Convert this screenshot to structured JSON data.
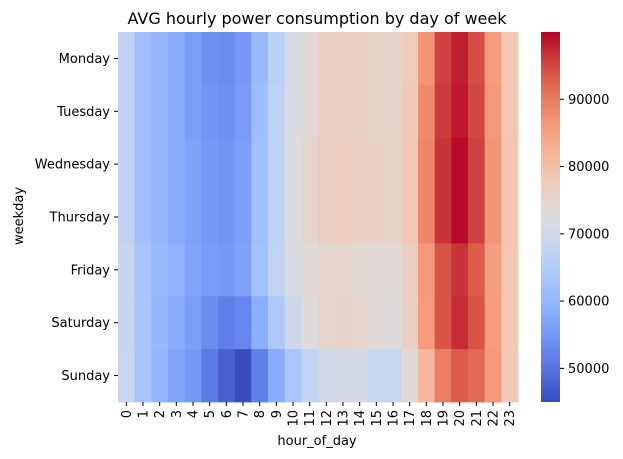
{
  "chart_data": {
    "type": "heatmap",
    "title": "AVG hourly power consumption by day of week",
    "xlabel": "hour_of_day",
    "ylabel": "weekday",
    "x": [
      "0",
      "1",
      "2",
      "3",
      "4",
      "5",
      "6",
      "7",
      "8",
      "9",
      "10",
      "11",
      "12",
      "13",
      "14",
      "15",
      "16",
      "17",
      "18",
      "19",
      "20",
      "21",
      "22",
      "23"
    ],
    "y": [
      "Monday",
      "Tuesday",
      "Wednesday",
      "Thursday",
      "Friday",
      "Saturday",
      "Sunday"
    ],
    "values": [
      [
        67000,
        62000,
        60000,
        58000,
        56000,
        54000,
        53500,
        55000,
        61000,
        66000,
        71000,
        74000,
        76000,
        76500,
        76000,
        75500,
        75000,
        77500,
        87000,
        95500,
        98000,
        94500,
        86000,
        78500
      ],
      [
        67000,
        62000,
        60000,
        58000,
        56000,
        54500,
        54000,
        55500,
        61500,
        66500,
        71500,
        74000,
        76000,
        76500,
        76000,
        75500,
        75000,
        78000,
        88000,
        96000,
        98500,
        95000,
        86500,
        78500
      ],
      [
        67000,
        62000,
        60000,
        58000,
        56500,
        55000,
        54500,
        56000,
        62000,
        67000,
        72000,
        74500,
        76500,
        77000,
        76500,
        76000,
        75500,
        78500,
        88500,
        96500,
        99500,
        95500,
        87000,
        79000
      ],
      [
        67000,
        62000,
        60000,
        58000,
        56500,
        55000,
        54500,
        56000,
        62000,
        67000,
        72000,
        74500,
        76500,
        77000,
        76500,
        76000,
        75500,
        78500,
        88500,
        96500,
        99500,
        95500,
        87000,
        79000
      ],
      [
        68000,
        63000,
        61000,
        59000,
        57000,
        55500,
        55000,
        56500,
        62500,
        67500,
        71500,
        73500,
        74500,
        74500,
        74000,
        73500,
        73500,
        76500,
        86500,
        94000,
        96500,
        93500,
        85500,
        78500
      ],
      [
        68000,
        63000,
        60500,
        58000,
        56000,
        53500,
        51500,
        52500,
        58500,
        64000,
        69500,
        73000,
        74500,
        75000,
        74500,
        73500,
        73000,
        76000,
        86000,
        94000,
        97000,
        94000,
        86000,
        78500
      ],
      [
        68500,
        63000,
        60000,
        57000,
        55000,
        51000,
        47500,
        45000,
        51500,
        58000,
        63500,
        67500,
        70000,
        70500,
        70500,
        69000,
        68500,
        73500,
        81500,
        89500,
        93500,
        92000,
        86500,
        78000
      ]
    ],
    "colorbar": {
      "ticks": [
        50000,
        60000,
        70000,
        80000,
        90000
      ],
      "range": [
        45000,
        100000
      ]
    },
    "colormap": "coolwarm",
    "grid": false
  }
}
